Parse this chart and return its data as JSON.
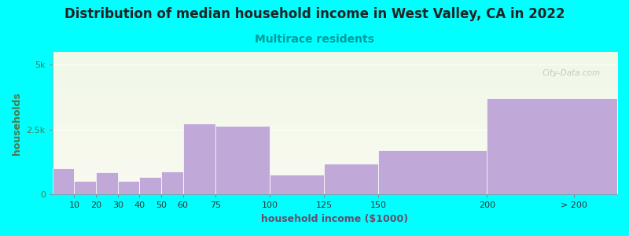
{
  "title": "Distribution of median household income in West Valley, CA in 2022",
  "subtitle": "Multirace residents",
  "xlabel": "household income ($1000)",
  "ylabel": "households",
  "background_color": "#00FFFF",
  "plot_bg_top": "#f0f8e8",
  "plot_bg_bottom": "#fafaf0",
  "bar_color": "#c0a8d8",
  "watermark": "City-Data.com",
  "bar_lefts": [
    0,
    10,
    20,
    30,
    40,
    50,
    60,
    75,
    100,
    125,
    150,
    200
  ],
  "bar_widths": [
    10,
    10,
    10,
    10,
    10,
    10,
    15,
    25,
    25,
    25,
    50,
    60
  ],
  "values": [
    1000,
    530,
    850,
    520,
    680,
    900,
    2750,
    2650,
    780,
    1200,
    1700,
    3700
  ],
  "ylim": [
    0,
    5500
  ],
  "xlim": [
    0,
    260
  ],
  "yticks": [
    0,
    2500,
    5000
  ],
  "ytick_labels": [
    "0",
    "2.5k",
    "5k"
  ],
  "xtick_positions": [
    10,
    20,
    30,
    40,
    50,
    60,
    75,
    100,
    125,
    150,
    200,
    240
  ],
  "xtick_labels": [
    "10",
    "20",
    "30",
    "40",
    "50",
    "60",
    "75",
    "100",
    "125",
    "150",
    "200",
    "> 200"
  ],
  "title_fontsize": 12,
  "subtitle_fontsize": 10,
  "axis_label_fontsize": 9,
  "tick_fontsize": 8,
  "ylabel_color": "#4a7a4a",
  "xlabel_color": "#6a4a6a",
  "ytick_color": "#4a7a4a",
  "title_color": "#222222",
  "subtitle_color": "#009999"
}
